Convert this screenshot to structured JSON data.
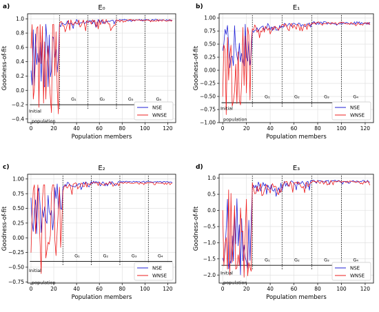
{
  "chart_data": [
    {
      "type": "line",
      "panel_label": "a)",
      "title": "E₀",
      "xlabel": "Population members",
      "ylabel": "Goodness-of-fit",
      "xlim": [
        -3,
        127
      ],
      "ylim": [
        -0.45,
        1.07
      ],
      "xticks": [
        0,
        20,
        40,
        60,
        80,
        100,
        120
      ],
      "yticks": [
        -0.4,
        -0.2,
        0.0,
        0.2,
        0.4,
        0.6,
        0.8,
        1.0
      ],
      "ytick_labels": [
        "−0.4",
        "−0.2",
        "0.0",
        "0.2",
        "0.4",
        "0.6",
        "0.8",
        "1.0"
      ],
      "grid": true,
      "legend": "bottom-right",
      "baseline_y": -0.2,
      "baseline_x": [
        -1,
        124
      ],
      "dividers_x": [
        25,
        50,
        75,
        100
      ],
      "generation_labels": [
        "G₁",
        "G₂",
        "G₃",
        "G₄"
      ],
      "generation_label_y": -0.14,
      "initial_text": [
        "Initial",
        "population"
      ],
      "initial_y": [
        -0.28,
        -0.42
      ],
      "seed": 11,
      "series": [
        {
          "name": "NSE",
          "color": "#1f1fd6",
          "segments": [
            {
              "x": [
                0,
                24
              ],
              "kind": "init",
              "base": 0.45,
              "amp": 0.5,
              "min": 0.05,
              "max": 0.93
            },
            {
              "x": [
                25,
                49
              ],
              "kind": "steady",
              "base": 0.96,
              "amp": 0.04,
              "min": 0.85,
              "max": 0.99
            },
            {
              "x": [
                50,
                74
              ],
              "kind": "steady",
              "base": 0.97,
              "amp": 0.04,
              "min": 0.88,
              "max": 0.99
            },
            {
              "x": [
                75,
                124
              ],
              "kind": "steady",
              "base": 0.985,
              "amp": 0.01,
              "min": 0.96,
              "max": 0.995
            }
          ]
        },
        {
          "name": "WNSE",
          "color": "#ee1c1c",
          "segments": [
            {
              "x": [
                0,
                24
              ],
              "kind": "init",
              "base": 0.35,
              "amp": 0.75,
              "min": -0.43,
              "max": 0.92
            },
            {
              "x": [
                25,
                49
              ],
              "kind": "steady",
              "base": 0.95,
              "amp": 0.06,
              "min": 0.78,
              "max": 0.99
            },
            {
              "x": [
                50,
                74
              ],
              "kind": "steady",
              "base": 0.96,
              "amp": 0.06,
              "min": 0.82,
              "max": 0.99
            },
            {
              "x": [
                75,
                124
              ],
              "kind": "steady",
              "base": 0.98,
              "amp": 0.015,
              "min": 0.95,
              "max": 0.99
            }
          ]
        }
      ]
    },
    {
      "type": "line",
      "panel_label": "b)",
      "title": "E₁",
      "xlabel": "Population members",
      "ylabel": "Goodness-of-fit",
      "xlim": [
        -3,
        127
      ],
      "ylim": [
        -1.0,
        1.08
      ],
      "xticks": [
        0,
        20,
        40,
        60,
        80,
        100,
        120
      ],
      "yticks": [
        -1.0,
        -0.75,
        -0.5,
        -0.25,
        0.0,
        0.25,
        0.5,
        0.75,
        1.0
      ],
      "ytick_labels": [
        "−1.00",
        "−0.75",
        "−0.50",
        "−0.25",
        "0.00",
        "0.25",
        "0.50",
        "0.75",
        "1.00"
      ],
      "grid": true,
      "legend": "bottom-right",
      "baseline_y": -0.62,
      "baseline_x": [
        -1,
        124
      ],
      "dividers_x": [
        25,
        50,
        75,
        100
      ],
      "generation_labels": [
        "G₁",
        "G₂",
        "G₃",
        "G₄"
      ],
      "generation_label_y": -0.53,
      "initial_text": [
        "Initial",
        "population"
      ],
      "initial_y": [
        -0.72,
        -0.93
      ],
      "seed": 23,
      "series": [
        {
          "name": "NSE",
          "color": "#1f1fd6",
          "segments": [
            {
              "x": [
                0,
                24
              ],
              "kind": "init",
              "base": 0.45,
              "amp": 0.45,
              "min": 0.0,
              "max": 0.88
            },
            {
              "x": [
                25,
                49
              ],
              "kind": "steady",
              "base": 0.84,
              "amp": 0.07,
              "min": 0.7,
              "max": 0.9
            },
            {
              "x": [
                50,
                74
              ],
              "kind": "steady",
              "base": 0.88,
              "amp": 0.04,
              "min": 0.8,
              "max": 0.93
            },
            {
              "x": [
                75,
                124
              ],
              "kind": "steady",
              "base": 0.91,
              "amp": 0.025,
              "min": 0.86,
              "max": 0.94
            }
          ]
        },
        {
          "name": "WNSE",
          "color": "#ee1c1c",
          "segments": [
            {
              "x": [
                0,
                24
              ],
              "kind": "init",
              "base": 0.1,
              "amp": 0.9,
              "min": -0.95,
              "max": 0.82
            },
            {
              "x": [
                25,
                49
              ],
              "kind": "steady",
              "base": 0.82,
              "amp": 0.08,
              "min": 0.6,
              "max": 0.9
            },
            {
              "x": [
                50,
                74
              ],
              "kind": "steady",
              "base": 0.87,
              "amp": 0.05,
              "min": 0.75,
              "max": 0.92
            },
            {
              "x": [
                75,
                124
              ],
              "kind": "steady",
              "base": 0.905,
              "amp": 0.025,
              "min": 0.85,
              "max": 0.93
            }
          ]
        }
      ]
    },
    {
      "type": "line",
      "panel_label": "c)",
      "title": "E₂",
      "xlabel": "Population members",
      "ylabel": "Goodness-of-fit",
      "xlim": [
        -3,
        127
      ],
      "ylim": [
        -0.77,
        1.08
      ],
      "xticks": [
        0,
        20,
        40,
        60,
        80,
        100,
        120
      ],
      "yticks": [
        -0.75,
        -0.5,
        -0.25,
        0.0,
        0.25,
        0.5,
        0.75,
        1.0
      ],
      "ytick_labels": [
        "−0.75",
        "−0.50",
        "−0.25",
        "0.00",
        "0.25",
        "0.50",
        "0.75",
        "1.00"
      ],
      "grid": true,
      "legend": "bottom-right",
      "baseline_y": -0.4,
      "baseline_x": [
        -1,
        124
      ],
      "dividers_x": [
        28,
        53,
        78,
        103
      ],
      "generation_labels": [
        "G₁",
        "G₂",
        "G₃",
        "G₄"
      ],
      "generation_label_y": -0.33,
      "initial_text": [
        "Initial",
        "population"
      ],
      "initial_y": [
        -0.55,
        -0.75
      ],
      "seed": 37,
      "series": [
        {
          "name": "NSE",
          "color": "#1f1fd6",
          "segments": [
            {
              "x": [
                0,
                27
              ],
              "kind": "init",
              "base": 0.55,
              "amp": 0.35,
              "min": 0.05,
              "max": 0.93
            },
            {
              "x": [
                28,
                52
              ],
              "kind": "steady",
              "base": 0.92,
              "amp": 0.05,
              "min": 0.8,
              "max": 0.96
            },
            {
              "x": [
                53,
                77
              ],
              "kind": "steady",
              "base": 0.94,
              "amp": 0.03,
              "min": 0.88,
              "max": 0.97
            },
            {
              "x": [
                78,
                124
              ],
              "kind": "steady",
              "base": 0.955,
              "amp": 0.01,
              "min": 0.93,
              "max": 0.97
            }
          ]
        },
        {
          "name": "WNSE",
          "color": "#ee1c1c",
          "segments": [
            {
              "x": [
                0,
                27
              ],
              "kind": "init",
              "base": 0.35,
              "amp": 0.7,
              "min": -0.7,
              "max": 0.9
            },
            {
              "x": [
                28,
                52
              ],
              "kind": "steady",
              "base": 0.9,
              "amp": 0.06,
              "min": 0.73,
              "max": 0.95
            },
            {
              "x": [
                53,
                77
              ],
              "kind": "steady",
              "base": 0.92,
              "amp": 0.04,
              "min": 0.82,
              "max": 0.95
            },
            {
              "x": [
                78,
                124
              ],
              "kind": "steady",
              "base": 0.935,
              "amp": 0.01,
              "min": 0.9,
              "max": 0.95
            }
          ]
        }
      ]
    },
    {
      "type": "line",
      "panel_label": "d)",
      "title": "E₃",
      "xlabel": "Population members",
      "ylabel": "Goodness-of-fit",
      "xlim": [
        -3,
        127
      ],
      "ylim": [
        -2.25,
        1.12
      ],
      "xticks": [
        0,
        20,
        40,
        60,
        80,
        100,
        120
      ],
      "yticks": [
        -2.0,
        -1.5,
        -1.0,
        -0.5,
        0.0,
        0.5,
        1.0
      ],
      "ytick_labels": [
        "−2.0",
        "−1.5",
        "−1.0",
        "−0.5",
        "0.0",
        "0.5",
        "1.0"
      ],
      "grid": true,
      "legend": "bottom-right",
      "baseline_y": -1.7,
      "baseline_x": [
        -1,
        124
      ],
      "dividers_x": [
        25,
        50,
        75,
        100
      ],
      "generation_labels": [
        "G₁",
        "G₂",
        "G₃",
        "G₄"
      ],
      "generation_label_y": -1.58,
      "initial_text": [
        "Initial",
        "population"
      ],
      "initial_y": [
        -1.92,
        -2.22
      ],
      "seed": 53,
      "series": [
        {
          "name": "NSE",
          "color": "#1f1fd6",
          "segments": [
            {
              "x": [
                0,
                24
              ],
              "kind": "init",
              "base": -0.6,
              "amp": 1.2,
              "min": -2.0,
              "max": 0.8
            },
            {
              "x": [
                25,
                49
              ],
              "kind": "steady",
              "base": 0.75,
              "amp": 0.18,
              "min": 0.35,
              "max": 0.95
            },
            {
              "x": [
                50,
                74
              ],
              "kind": "steady",
              "base": 0.85,
              "amp": 0.1,
              "min": 0.55,
              "max": 0.95
            },
            {
              "x": [
                75,
                124
              ],
              "kind": "steady",
              "base": 0.91,
              "amp": 0.03,
              "min": 0.8,
              "max": 0.95
            }
          ]
        },
        {
          "name": "WNSE",
          "color": "#ee1c1c",
          "segments": [
            {
              "x": [
                0,
                24
              ],
              "kind": "init",
              "base": -0.7,
              "amp": 1.4,
              "min": -2.15,
              "max": 0.82
            },
            {
              "x": [
                25,
                49
              ],
              "kind": "steady",
              "base": 0.72,
              "amp": 0.2,
              "min": 0.3,
              "max": 0.94
            },
            {
              "x": [
                50,
                74
              ],
              "kind": "steady",
              "base": 0.83,
              "amp": 0.12,
              "min": 0.5,
              "max": 0.94
            },
            {
              "x": [
                75,
                124
              ],
              "kind": "steady",
              "base": 0.9,
              "amp": 0.04,
              "min": 0.78,
              "max": 0.94
            }
          ]
        }
      ]
    }
  ]
}
